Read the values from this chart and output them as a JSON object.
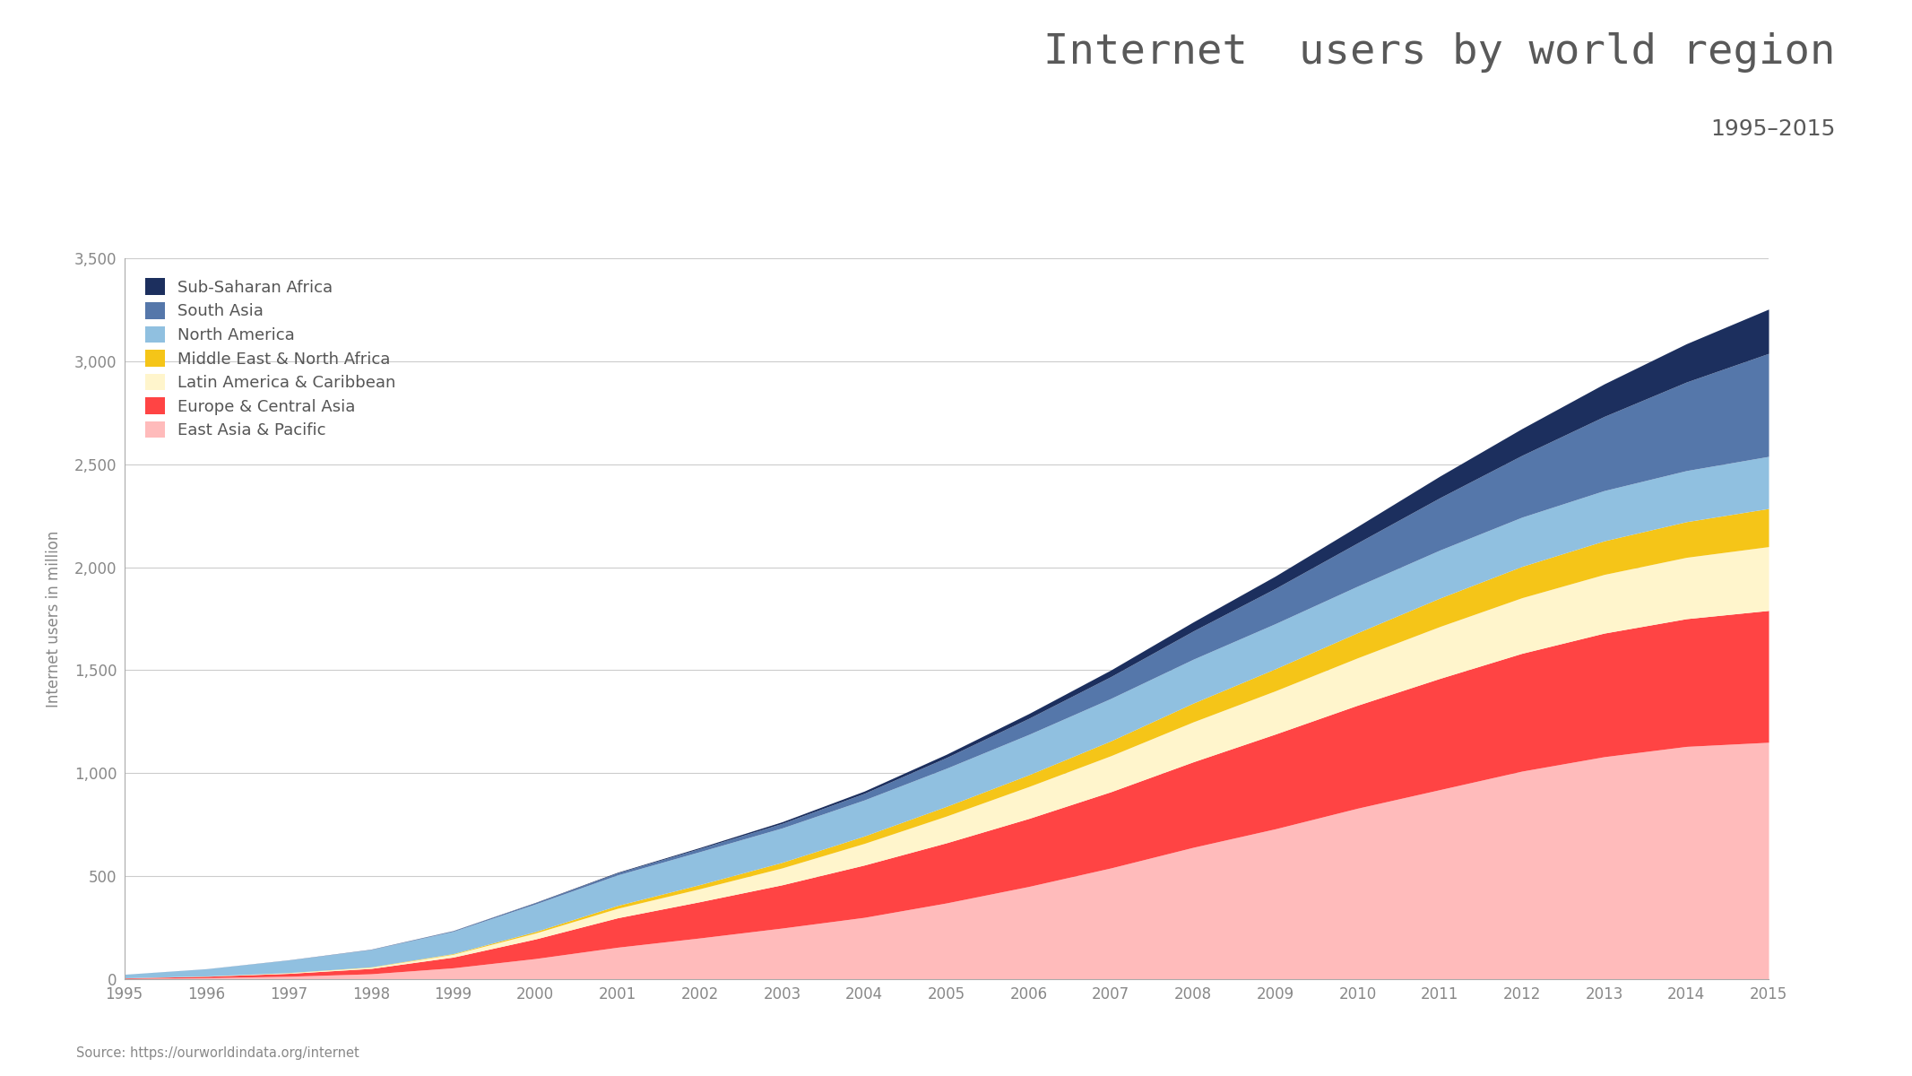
{
  "title": "Internet  users by world region",
  "subtitle": "1995–2015",
  "ylabel": "Internet users in million",
  "source": "Source: https://ourworldindata.org/internet",
  "years": [
    1995,
    1996,
    1997,
    1998,
    1999,
    2000,
    2001,
    2002,
    2003,
    2004,
    2005,
    2006,
    2007,
    2008,
    2009,
    2010,
    2011,
    2012,
    2013,
    2014,
    2015
  ],
  "regions": [
    "East Asia & Pacific",
    "Europe & Central Asia",
    "Latin America & Caribbean",
    "Middle East & North Africa",
    "North America",
    "South Asia",
    "Sub-Saharan Africa"
  ],
  "colors": [
    "#FFBBBB",
    "#FF4444",
    "#FFF5CC",
    "#F5C518",
    "#90C0E0",
    "#5577AA",
    "#1C2F5E"
  ],
  "data": {
    "East Asia & Pacific": [
      3,
      7,
      14,
      26,
      55,
      100,
      155,
      200,
      248,
      300,
      370,
      450,
      540,
      640,
      730,
      830,
      920,
      1010,
      1080,
      1130,
      1150
    ],
    "Europe & Central Asia": [
      3,
      7,
      14,
      26,
      52,
      95,
      143,
      176,
      210,
      254,
      292,
      330,
      370,
      415,
      460,
      500,
      540,
      572,
      600,
      620,
      640
    ],
    "Latin America & Caribbean": [
      0.3,
      1,
      3,
      6,
      14,
      29,
      46,
      63,
      82,
      105,
      130,
      155,
      175,
      194,
      210,
      230,
      252,
      270,
      285,
      298,
      310
    ],
    "Middle East & North Africa": [
      0.1,
      0.3,
      0.8,
      1.5,
      3,
      7,
      14,
      20,
      27,
      36,
      47,
      57,
      72,
      91,
      107,
      122,
      138,
      152,
      163,
      173,
      185
    ],
    "North America": [
      17,
      35,
      61,
      84,
      108,
      134,
      148,
      160,
      167,
      175,
      185,
      196,
      206,
      213,
      219,
      226,
      233,
      239,
      244,
      248,
      253
    ],
    "South Asia": [
      0.1,
      0.3,
      0.8,
      1.5,
      3,
      6,
      10,
      15,
      22,
      32,
      52,
      78,
      106,
      137,
      171,
      210,
      254,
      300,
      360,
      430,
      500
    ],
    "Sub-Saharan Africa": [
      0.05,
      0.1,
      0.2,
      0.4,
      0.8,
      1.5,
      3,
      5,
      8,
      11,
      16,
      23,
      32,
      44,
      60,
      80,
      105,
      130,
      158,
      186,
      215
    ]
  },
  "ylim": [
    0,
    3500
  ],
  "yticks": [
    0,
    500,
    1000,
    1500,
    2000,
    2500,
    3000,
    3500
  ],
  "background_color": "#FFFFFF",
  "grid_color": "#CCCCCC",
  "title_color": "#595959",
  "axis_color": "#888888",
  "legend_fontsize": 13,
  "title_fontsize": 34,
  "subtitle_fontsize": 18
}
